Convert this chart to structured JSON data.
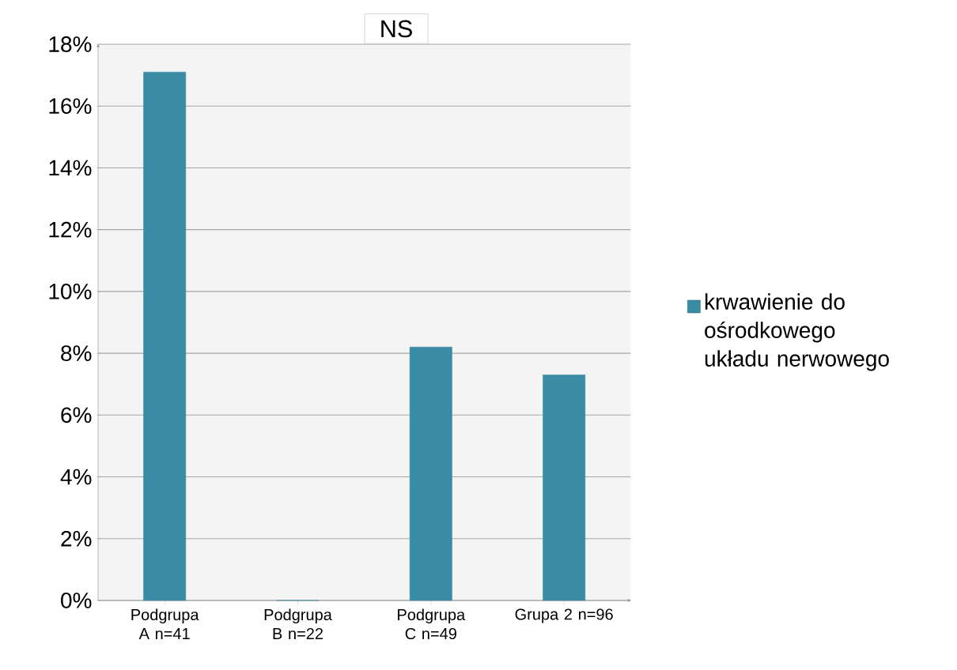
{
  "chart_data": {
    "type": "bar",
    "categories": [
      "Podgrupa A n=41",
      "Podgrupa B n=22",
      "Podgrupa C n=49",
      "Grupa 2 n=96"
    ],
    "series": [
      {
        "name": "krwawienie do ośrodkowego układu nerwowego",
        "color": "#3a8ca4",
        "values": [
          17.1,
          0,
          8.2,
          7.3
        ]
      }
    ],
    "ylim": [
      0,
      18
    ],
    "yticks": [
      {
        "value": 0,
        "label": "0%"
      },
      {
        "value": 2,
        "label": "2%"
      },
      {
        "value": 4,
        "label": "4%"
      },
      {
        "value": 6,
        "label": "6%"
      },
      {
        "value": 8,
        "label": "8%"
      },
      {
        "value": 10,
        "label": "10%"
      },
      {
        "value": 12,
        "label": "12%"
      },
      {
        "value": 14,
        "label": "14%"
      },
      {
        "value": 16,
        "label": "16%"
      },
      {
        "value": 18,
        "label": "18%"
      }
    ],
    "grid": "y",
    "legend": "right",
    "annotations": [
      "NS"
    ]
  }
}
